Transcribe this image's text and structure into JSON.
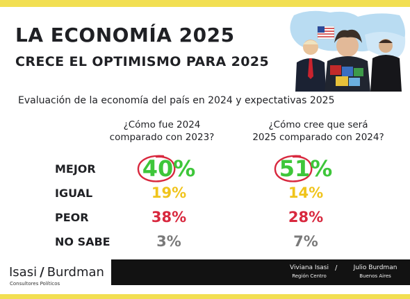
{
  "header": {
    "title": "LA ECONOMÍA 2025",
    "subtitle": "CRECE EL OPTIMISMO PARA 2025"
  },
  "colors": {
    "band_yellow": "#f2df52",
    "positive_green": "#3ec63a",
    "neutral_yellow": "#f0c41c",
    "negative_red": "#d8283e",
    "unknown_gray": "#7a7a7a",
    "highlight_ring": "#d8283e",
    "dark": "#121212"
  },
  "chart_data": {
    "type": "table",
    "title": "Evaluación de la economía del país en 2024 y expectativas 2025",
    "columns": [
      {
        "line1": "¿Cómo fue 2024",
        "line2": "comparado con 2023?"
      },
      {
        "line1": "¿Cómo cree que será",
        "line2": "2025 comparado con 2024?"
      }
    ],
    "rows": [
      {
        "label": "MEJOR",
        "values": [
          40,
          51
        ],
        "display": [
          "40%",
          "51%"
        ],
        "color": "#3ec63a",
        "highlighted": true
      },
      {
        "label": "IGUAL",
        "values": [
          19,
          14
        ],
        "display": [
          "19%",
          "14%"
        ],
        "color": "#f0c41c",
        "highlighted": false
      },
      {
        "label": "PEOR",
        "values": [
          38,
          28
        ],
        "display": [
          "38%",
          "28%"
        ],
        "color": "#d8283e",
        "highlighted": false
      },
      {
        "label": "NO SABE",
        "values": [
          3,
          7
        ],
        "display": [
          "3%",
          "7%"
        ],
        "color": "#7a7a7a",
        "highlighted": false
      }
    ]
  },
  "footer": {
    "brand_left": "Isasi",
    "brand_slash": "/",
    "brand_right": "Burdman",
    "brand_sub": "Consultores Políticos",
    "people": [
      {
        "name": "Viviana Isasi",
        "region": "Región Centro"
      },
      {
        "name": "Julio Burdman",
        "region": "Buenos Aires"
      }
    ],
    "separator": "/"
  },
  "illustration": {
    "icon": "political-leaders-collage-icon"
  }
}
